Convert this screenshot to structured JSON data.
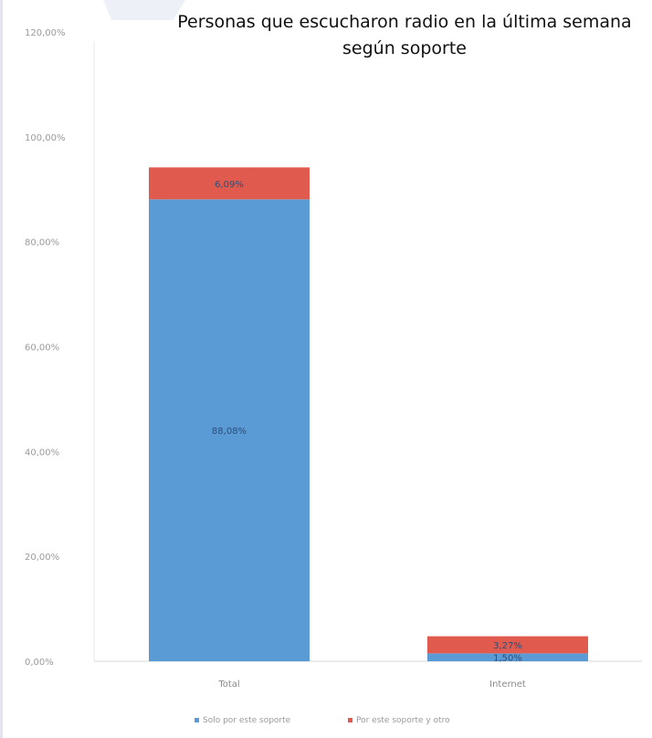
{
  "chart_data": {
    "type": "bar",
    "stacked": true,
    "title": "Personas que escucharon radio en la última semana",
    "title_line2": "según soporte",
    "categories": [
      "Total",
      "Internet"
    ],
    "series": [
      {
        "name": "Solo por este soporte",
        "color": "#5b9bd5",
        "values": [
          88.08,
          1.5
        ],
        "labels": [
          "88,08%",
          "1,50%"
        ]
      },
      {
        "name": "Por este soporte y otro",
        "color": "#e05a4e",
        "values": [
          6.09,
          3.27
        ],
        "labels": [
          "6,09%",
          "3,27%"
        ]
      }
    ],
    "y_ticks": [
      "0,00%",
      "20,00%",
      "40,00%",
      "60,00%",
      "80,00%",
      "100,00%",
      "120,00%"
    ],
    "ylim": [
      0,
      120
    ],
    "grid": false,
    "legend_position": "bottom"
  }
}
